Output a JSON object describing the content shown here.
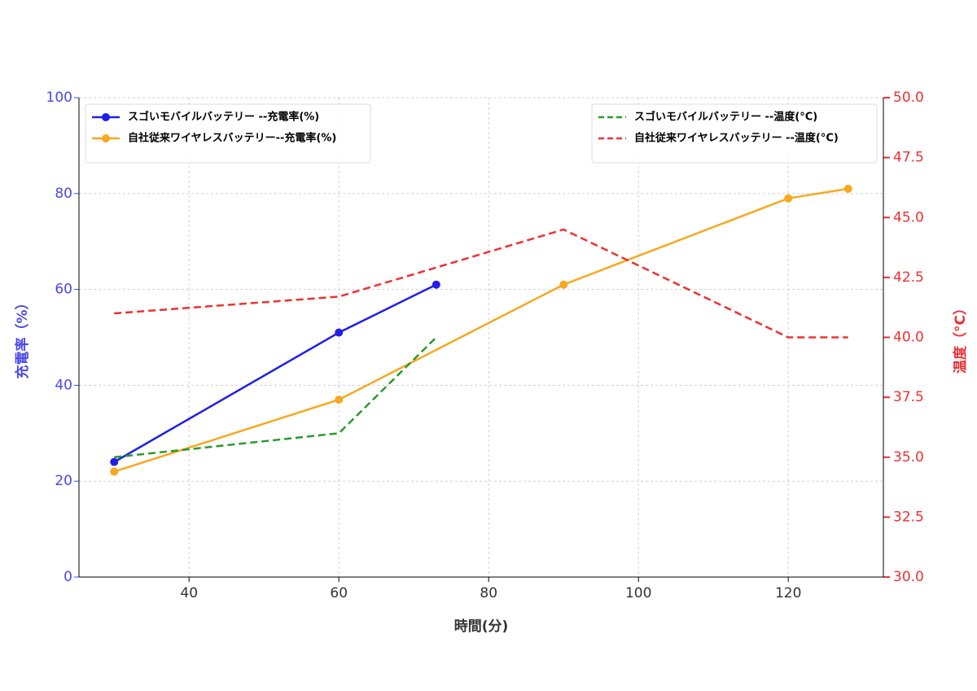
{
  "chart_data": {
    "type": "line",
    "xlabel": "時間(分)",
    "ylabel": "充電率（%）",
    "y2label": "温度（°C）",
    "xlim": [
      25.3,
      132.7
    ],
    "xticks": [
      40,
      60,
      80,
      100,
      120
    ],
    "ylim": [
      0,
      100
    ],
    "yticks": [
      0,
      20,
      40,
      60,
      80,
      100
    ],
    "y2lim": [
      30,
      50
    ],
    "y2ticks": [
      {
        "value": 30,
        "label": "30.0"
      },
      {
        "value": 32.5,
        "label": "32.5"
      },
      {
        "value": 35,
        "label": "35.0"
      },
      {
        "value": 37.5,
        "label": "37.5"
      },
      {
        "value": 40,
        "label": "40.0"
      },
      {
        "value": 42.5,
        "label": "42.5"
      },
      {
        "value": 45,
        "label": "45.0"
      },
      {
        "value": 47.5,
        "label": "47.5"
      },
      {
        "value": 50,
        "label": "50.0"
      }
    ],
    "ycolor": "#4848e8",
    "y2color": "#f03030",
    "grid": true,
    "series": [
      {
        "name": "スゴいモバイルバッテリー  --充電率(%)",
        "color": "#1f1fe8",
        "style": "solid",
        "marker": true,
        "legend": "upper left",
        "x": [
          30,
          60,
          73
        ],
        "values": [
          24,
          51,
          61
        ]
      },
      {
        "name": "自社従来ワイヤレスバッテリー--充電率(%)",
        "color": "#f8a820",
        "style": "solid",
        "marker": true,
        "legend": "upper left",
        "x": [
          30,
          60,
          90,
          120,
          128
        ],
        "values": [
          22,
          37,
          61,
          79,
          81
        ]
      },
      {
        "name": "スゴいモバイルバッテリー --温度(°C)",
        "color": "#2a9a2a",
        "style": "dashed",
        "marker": false,
        "legend": "upper right",
        "axis": "y2",
        "x": [
          30,
          60,
          73
        ],
        "values": [
          35.0,
          36.0,
          40.0
        ]
      },
      {
        "name": "自社従来ワイヤレスバッテリー --温度(°C)",
        "color": "#f03030",
        "style": "dashed",
        "marker": false,
        "legend": "upper right",
        "axis": "y2",
        "x": [
          30,
          60,
          90,
          120,
          128
        ],
        "values": [
          41.0,
          41.7,
          44.5,
          40.0,
          40.0
        ]
      }
    ]
  }
}
